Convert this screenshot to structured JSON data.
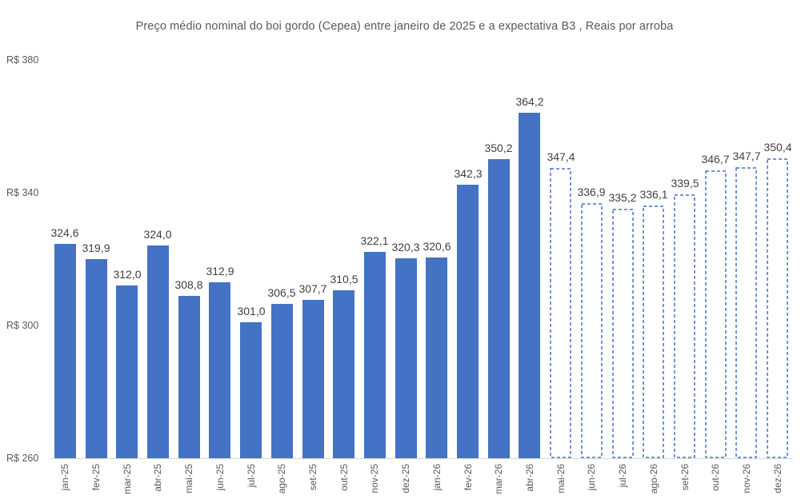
{
  "chart_data": {
    "type": "bar",
    "title": "Preço médio nominal do boi gordo (Cepea) entre janeiro de 2025 e a expectativa B3 , Reais por arroba",
    "categories": [
      "jan-25",
      "fev-25",
      "mar-25",
      "abr-25",
      "mai-25",
      "jun-25",
      "jul-25",
      "ago-25",
      "set-25",
      "out-25",
      "nov-25",
      "dez-25",
      "jan-26",
      "fev-26",
      "mar-26",
      "abr-26",
      "mai-26",
      "jun-26",
      "jul-26",
      "ago-26",
      "set-26",
      "out-26",
      "nov-26",
      "dez-26"
    ],
    "values": [
      324.6,
      319.9,
      312.0,
      324.0,
      308.8,
      312.9,
      301.0,
      306.5,
      307.7,
      310.5,
      322.1,
      320.3,
      320.6,
      342.3,
      350.2,
      364.2,
      347.4,
      336.9,
      335.2,
      336.1,
      339.5,
      346.7,
      347.7,
      350.4
    ],
    "value_labels": [
      "324,6",
      "319,9",
      "312,0",
      "324,0",
      "308,8",
      "312,9",
      "301,0",
      "306,5",
      "307,7",
      "310,5",
      "322,1",
      "320,3",
      "320,6",
      "342,3",
      "350,2",
      "364,2",
      "347,4",
      "336,9",
      "335,2",
      "336,1",
      "339,5",
      "346,7",
      "347,7",
      "350,4"
    ],
    "bar_styles": [
      "solid",
      "solid",
      "solid",
      "solid",
      "solid",
      "solid",
      "solid",
      "solid",
      "solid",
      "solid",
      "solid",
      "solid",
      "solid",
      "solid",
      "solid",
      "solid",
      "dashed",
      "dashed",
      "dashed",
      "dashed",
      "dashed",
      "dashed",
      "dashed",
      "dashed"
    ],
    "ytick_labels": [
      "R$ 380",
      "R$ 340",
      "R$ 300",
      "R$ 260"
    ],
    "ytick_values": [
      380,
      340,
      300,
      260
    ],
    "ylim": [
      260,
      380
    ],
    "xlabel": "",
    "ylabel": "Reais por arroba",
    "grid": false,
    "legend": "none",
    "colors": {
      "bar_fill": "#4472c4",
      "dashed_stroke": "#4472c4",
      "value_label_text": "#404040",
      "axis_text": "#595959",
      "title_text": "#595959",
      "axis_line": "#d9d9d9",
      "background": "#ffffff"
    }
  }
}
